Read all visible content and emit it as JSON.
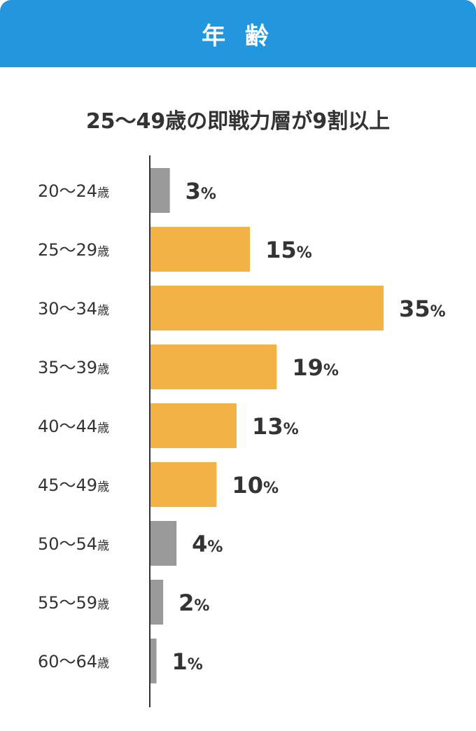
{
  "header": {
    "title": "年 齢"
  },
  "subtitle": "25〜49歳の即戦力層が9割以上",
  "colors": {
    "header": "#2396e0",
    "highlight": "#f3b246",
    "muted": "#999999",
    "axis": "#333333"
  },
  "chart_data": {
    "type": "bar",
    "orientation": "horizontal",
    "categories": [
      "20〜24",
      "25〜29",
      "30〜34",
      "35〜39",
      "40〜44",
      "45〜49",
      "50〜54",
      "55〜59",
      "60〜64"
    ],
    "category_unit": "歳",
    "values": [
      3,
      15,
      35,
      19,
      13,
      10,
      4,
      2,
      1
    ],
    "value_unit": "%",
    "highlight_categories": [
      "25〜29",
      "30〜34",
      "35〜39",
      "40〜44",
      "45〜49"
    ],
    "xlim": [
      0,
      35
    ],
    "title": "25〜49歳の即戦力層が9割以上"
  }
}
